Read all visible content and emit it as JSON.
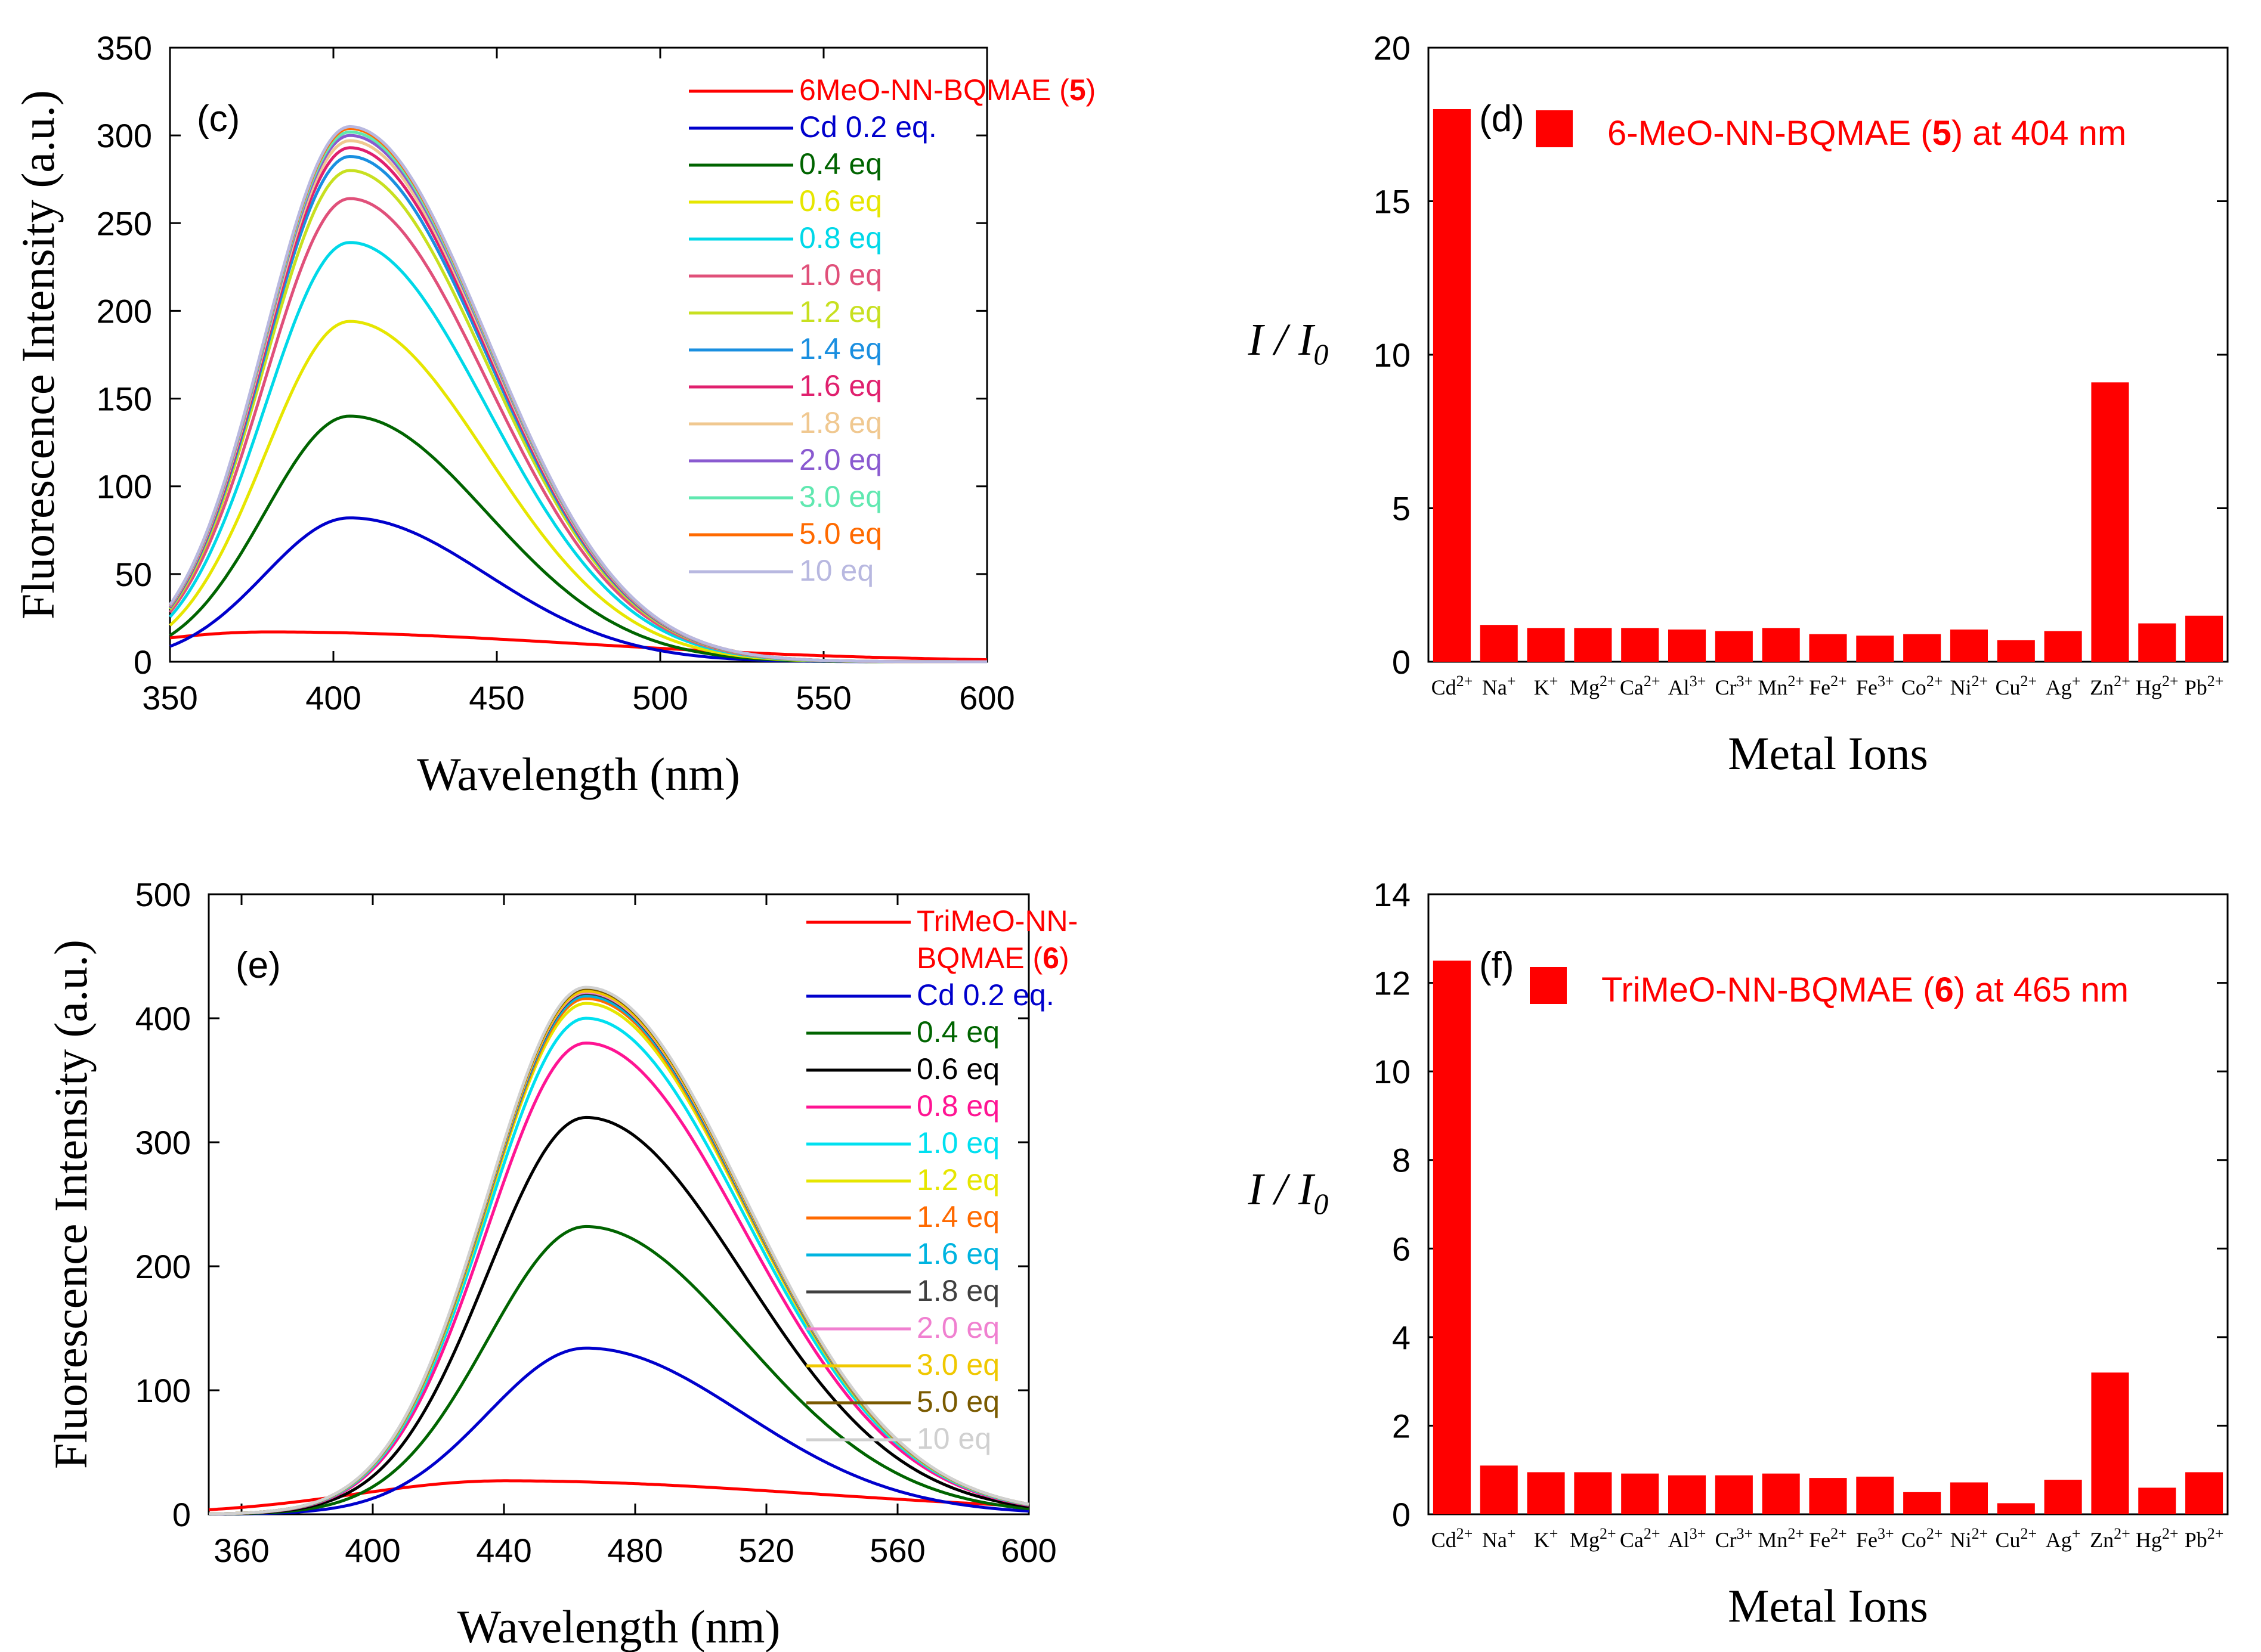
{
  "chart_data": [
    {
      "panel": "(c)",
      "type": "line",
      "xlabel": "Wavelength (nm)",
      "ylabel": "Fluorescence Intensity (a.u.)",
      "xlim": [
        350,
        600
      ],
      "ylim": [
        0,
        350
      ],
      "xticks": [
        350,
        400,
        450,
        500,
        550,
        600
      ],
      "yticks": [
        0,
        50,
        100,
        150,
        200,
        250,
        300,
        350
      ],
      "peak_wavelength": 405,
      "width_left": 26,
      "width_right": 42,
      "series": [
        {
          "name": "6MeO-NN-BQMAE (5)",
          "color": "#ff0000",
          "peak": 17,
          "mode": "flat"
        },
        {
          "name": "Cd 0.2 eq.",
          "color": "#0000cc",
          "peak": 82
        },
        {
          "name": "0.4 eq",
          "color": "#006400",
          "peak": 140
        },
        {
          "name": "0.6 eq",
          "color": "#e6e600",
          "peak": 194
        },
        {
          "name": "0.8 eq",
          "color": "#00d8e8",
          "peak": 239
        },
        {
          "name": "1.0 eq",
          "color": "#e0507a",
          "peak": 264
        },
        {
          "name": "1.2 eq",
          "color": "#c8e020",
          "peak": 280
        },
        {
          "name": "1.4 eq",
          "color": "#1a8fe0",
          "peak": 288
        },
        {
          "name": "1.6 eq",
          "color": "#e0206e",
          "peak": 293
        },
        {
          "name": "1.8 eq",
          "color": "#f0c890",
          "peak": 297
        },
        {
          "name": "2.0 eq",
          "color": "#8a5ad0",
          "peak": 300
        },
        {
          "name": "3.0 eq",
          "color": "#60e8b0",
          "peak": 302
        },
        {
          "name": "5.0 eq",
          "color": "#ff6a00",
          "peak": 304
        },
        {
          "name": "10 eq",
          "color": "#b8b8e0",
          "peak": 305
        }
      ]
    },
    {
      "panel": "(d)",
      "type": "bar",
      "xlabel": "Metal Ions",
      "ylabel": "I / I0",
      "ylim": [
        0,
        20
      ],
      "yticks": [
        0,
        5,
        10,
        15,
        20
      ],
      "legend": "6-MeO-NN-BQMAE (5) at 404 nm",
      "color": "#ff0000",
      "categories": [
        "Cd2+",
        "Na+",
        "K+",
        "Mg2+",
        "Ca2+",
        "Al3+",
        "Cr3+",
        "Mn2+",
        "Fe2+",
        "Fe3+",
        "Co2+",
        "Ni2+",
        "Cu2+",
        "Ag+",
        "Zn2+",
        "Hg2+",
        "Pb2+"
      ],
      "values": [
        18.0,
        1.2,
        1.1,
        1.1,
        1.1,
        1.05,
        1.0,
        1.1,
        0.9,
        0.85,
        0.9,
        1.05,
        0.7,
        1.0,
        9.1,
        1.25,
        1.5
      ]
    },
    {
      "panel": "(e)",
      "type": "line",
      "xlabel": "Wavelength (nm)",
      "ylabel": "Fluorescence Intensity (a.u.)",
      "xlim": [
        350,
        600
      ],
      "ylim": [
        0,
        500
      ],
      "xticks": [
        360,
        400,
        440,
        480,
        520,
        560,
        600
      ],
      "yticks": [
        0,
        100,
        200,
        300,
        400,
        500
      ],
      "peak_wavelength": 465,
      "width_left": 30,
      "width_right": 48,
      "series": [
        {
          "name": "TriMeO-NN-\nBQMAE (6)",
          "color": "#ff0000",
          "peak": 27,
          "mode": "flat"
        },
        {
          "name": "Cd 0.2 eq.",
          "color": "#0000cc",
          "peak": 134
        },
        {
          "name": "0.4 eq",
          "color": "#006400",
          "peak": 232
        },
        {
          "name": "0.6 eq",
          "color": "#000000",
          "peak": 320
        },
        {
          "name": "0.8 eq",
          "color": "#ff1493",
          "peak": 380
        },
        {
          "name": "1.0 eq",
          "color": "#00e0f0",
          "peak": 400
        },
        {
          "name": "1.2 eq",
          "color": "#e6e600",
          "peak": 412
        },
        {
          "name": "1.4 eq",
          "color": "#ff6a00",
          "peak": 416
        },
        {
          "name": "1.6 eq",
          "color": "#00b4e0",
          "peak": 418
        },
        {
          "name": "1.8 eq",
          "color": "#404040",
          "peak": 420
        },
        {
          "name": "2.0 eq",
          "color": "#f080d0",
          "peak": 421
        },
        {
          "name": "3.0 eq",
          "color": "#f0c800",
          "peak": 422
        },
        {
          "name": "5.0 eq",
          "color": "#7a5a00",
          "peak": 424
        },
        {
          "name": "10 eq",
          "color": "#d0d0d0",
          "peak": 425
        }
      ]
    },
    {
      "panel": "(f)",
      "type": "bar",
      "xlabel": "Metal Ions",
      "ylabel": "I / I0",
      "ylim": [
        0,
        14
      ],
      "yticks": [
        0,
        2,
        4,
        6,
        8,
        10,
        12,
        14
      ],
      "legend": "TriMeO-NN-BQMAE (6) at 465 nm",
      "color": "#ff0000",
      "categories": [
        "Cd2+",
        "Na+",
        "K+",
        "Mg2+",
        "Ca2+",
        "Al3+",
        "Cr3+",
        "Mn2+",
        "Fe2+",
        "Fe3+",
        "Co2+",
        "Ni2+",
        "Cu2+",
        "Ag+",
        "Zn2+",
        "Hg2+",
        "Pb2+"
      ],
      "values": [
        12.5,
        1.1,
        0.95,
        0.95,
        0.92,
        0.88,
        0.88,
        0.92,
        0.82,
        0.85,
        0.5,
        0.72,
        0.25,
        0.78,
        3.2,
        0.6,
        0.95
      ]
    }
  ]
}
